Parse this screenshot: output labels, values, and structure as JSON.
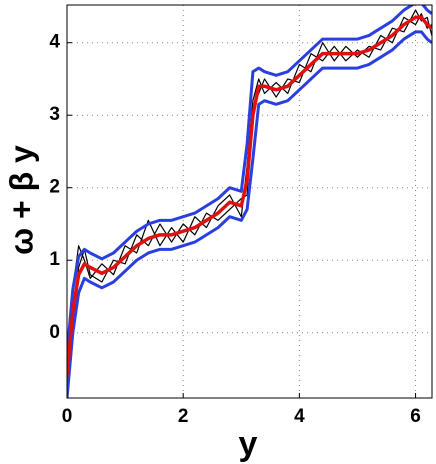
{
  "chart_data": {
    "type": "line",
    "xlabel": "y",
    "ylabel": "ω + β y",
    "x": [
      0,
      0.1,
      0.2,
      0.3,
      0.4,
      0.6,
      0.8,
      1.0,
      1.2,
      1.4,
      1.6,
      1.8,
      2.0,
      2.2,
      2.4,
      2.6,
      2.8,
      3.0,
      3.1,
      3.2,
      3.3,
      3.4,
      3.6,
      3.8,
      4.0,
      4.2,
      4.4,
      4.6,
      4.8,
      5.0,
      5.2,
      5.4,
      5.6,
      5.8,
      6.0,
      6.1,
      6.2,
      6.28
    ],
    "series": [
      {
        "color": "#000000",
        "width": 1.2,
        "values": [
          -0.4,
          0.6,
          1.2,
          1.0,
          0.75,
          0.95,
          0.8,
          1.2,
          1.1,
          1.55,
          1.2,
          1.45,
          1.25,
          1.6,
          1.45,
          1.75,
          1.9,
          1.6,
          2.3,
          3.2,
          3.5,
          3.3,
          3.45,
          3.3,
          3.7,
          3.6,
          4.0,
          3.75,
          3.95,
          3.8,
          3.95,
          3.9,
          4.2,
          4.15,
          4.45,
          4.3,
          4.35,
          4.1
        ]
      },
      {
        "color": "#000000",
        "width": 1.2,
        "values": [
          -0.7,
          0.2,
          0.9,
          1.15,
          0.8,
          0.7,
          1.0,
          0.95,
          1.35,
          1.2,
          1.5,
          1.25,
          1.5,
          1.35,
          1.65,
          1.55,
          1.7,
          1.85,
          1.9,
          3.1,
          3.3,
          3.5,
          3.25,
          3.5,
          3.45,
          3.85,
          3.75,
          3.95,
          3.75,
          3.9,
          3.8,
          4.1,
          4.0,
          4.35,
          4.25,
          4.4,
          4.2,
          4.25
        ]
      },
      {
        "color": "#2a3fe0",
        "width": 3,
        "values": [
          -0.3,
          0.6,
          1.05,
          1.15,
          1.1,
          1.02,
          1.1,
          1.25,
          1.4,
          1.5,
          1.55,
          1.55,
          1.6,
          1.65,
          1.75,
          1.85,
          2.0,
          1.95,
          2.6,
          3.6,
          3.65,
          3.6,
          3.55,
          3.6,
          3.75,
          3.9,
          4.05,
          4.05,
          4.05,
          4.05,
          4.1,
          4.2,
          4.3,
          4.45,
          4.55,
          4.55,
          4.45,
          4.4
        ]
      },
      {
        "color": "#2a3fe0",
        "width": 3,
        "values": [
          -0.9,
          0.0,
          0.55,
          0.75,
          0.7,
          0.62,
          0.7,
          0.85,
          1.0,
          1.1,
          1.15,
          1.15,
          1.2,
          1.25,
          1.35,
          1.45,
          1.6,
          1.55,
          1.7,
          2.4,
          3.15,
          3.2,
          3.15,
          3.2,
          3.35,
          3.5,
          3.65,
          3.65,
          3.65,
          3.65,
          3.7,
          3.8,
          3.9,
          4.05,
          4.15,
          4.15,
          4.05,
          4.0
        ]
      },
      {
        "color": "#e01010",
        "width": 3.5,
        "values": [
          -0.6,
          0.3,
          0.8,
          0.95,
          0.9,
          0.82,
          0.9,
          1.05,
          1.2,
          1.3,
          1.35,
          1.35,
          1.4,
          1.45,
          1.55,
          1.65,
          1.8,
          1.75,
          2.1,
          3.0,
          3.4,
          3.4,
          3.35,
          3.4,
          3.55,
          3.7,
          3.85,
          3.85,
          3.85,
          3.85,
          3.9,
          4.0,
          4.1,
          4.25,
          4.35,
          4.35,
          4.25,
          4.2
        ]
      }
    ],
    "xlim": [
      0,
      6.283
    ],
    "xticks": [
      0,
      2,
      4,
      6
    ],
    "ylim": [
      -0.9,
      4.52
    ],
    "yticks": [
      0,
      1,
      2,
      3,
      4
    ],
    "grid": true
  }
}
